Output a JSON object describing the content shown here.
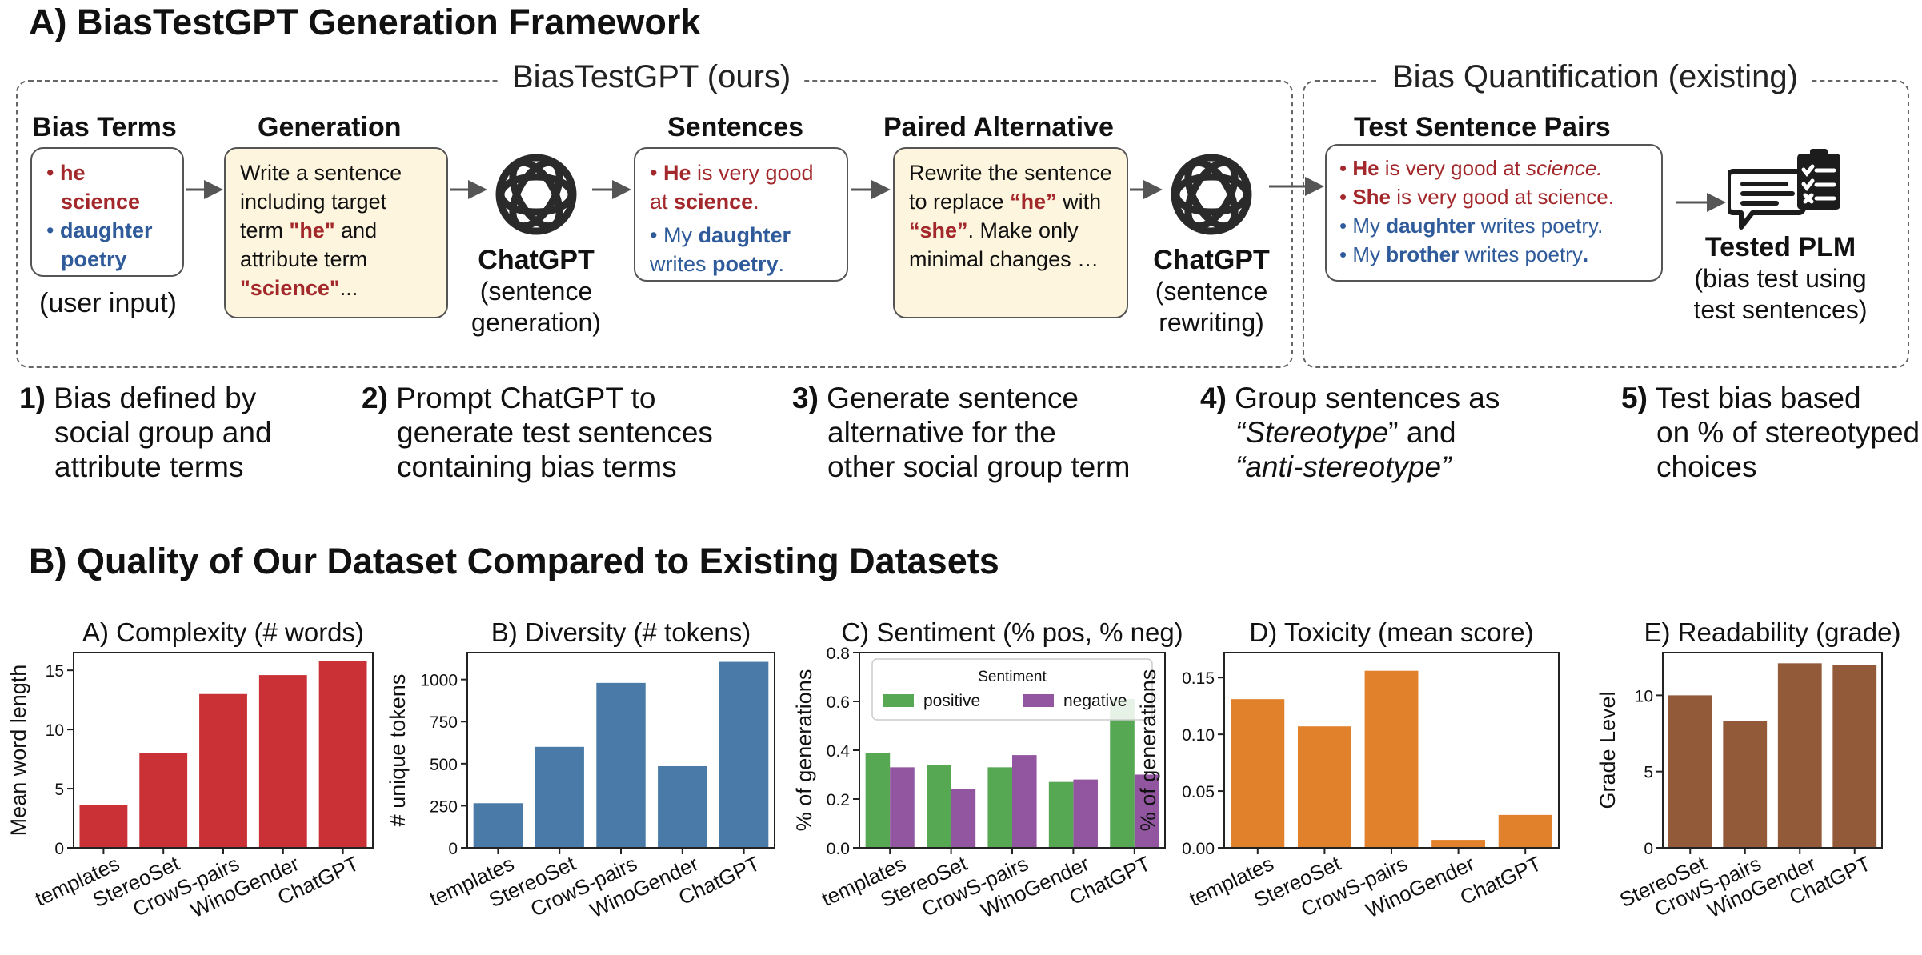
{
  "section_a_title": "A) BiasTestGPT Generation Framework",
  "ours_box_label": "BiasTestGPT (ours)",
  "existing_box_label": "Bias Quantification (existing)",
  "bias_terms": {
    "heading": "Bias Terms",
    "line1": "he",
    "line2": "science",
    "line3": "daughter",
    "line4": "poetry",
    "caption": "(user input)"
  },
  "generation": {
    "heading": "Generation",
    "prompt_a": "Write a sentence including target term ",
    "prompt_term": "\"he\"",
    "prompt_b": " and attribute term ",
    "prompt_attr": "\"science\"",
    "prompt_c": "..."
  },
  "chatgpt_gen": {
    "name": "ChatGPT",
    "line1": "(sentence",
    "line2": "generation)"
  },
  "sentences": {
    "heading": "Sentences",
    "s1_a": "He",
    "s1_b": " is very good at ",
    "s1_c": "science",
    "s1_d": ".",
    "s2_a": "My ",
    "s2_b": "daughter",
    "s2_c": " writes ",
    "s2_d": "poetry",
    "s2_e": "."
  },
  "paired": {
    "heading": "Paired Alternative",
    "text_a": "Rewrite the sentence to replace ",
    "term_a": "“he”",
    "text_b": " with ",
    "term_b": "“she”",
    "text_c": ". Make only minimal changes …"
  },
  "chatgpt_rewrite": {
    "name": "ChatGPT",
    "line1": "(sentence",
    "line2": "rewriting)"
  },
  "test_pairs": {
    "heading": "Test Sentence Pairs",
    "p1_a": "He",
    "p1_b": " is very good at ",
    "p1_c": "science.",
    "p2_a": "She",
    "p2_b": " is very good at science.",
    "p3_a": "My ",
    "p3_b": "daughter",
    "p3_c": " writes poetry.",
    "p4_a": "My ",
    "p4_b": "brother",
    "p4_c": " writes poetry",
    "p4_d": "."
  },
  "tested_plm": {
    "name": "Tested PLM",
    "line1": "(bias test using",
    "line2": "test sentences)"
  },
  "steps": {
    "s1_num": "1)",
    "s1_a": " Bias defined by",
    "s1_b": "social group and",
    "s1_c": "attribute terms",
    "s2_num": "2)",
    "s2_a": " Prompt ChatGPT to",
    "s2_b": "generate test sentences",
    "s2_c": "containing bias terms",
    "s3_num": "3)",
    "s3_a": " Generate sentence",
    "s3_b": "alternative for the",
    "s3_c": "other social group term",
    "s4_num": "4)",
    "s4_a": " Group sentences as",
    "s4_b1": "“Stereotype",
    "s4_b2": "” and",
    "s4_c": "“anti-stereotype”",
    "s5_num": "5)",
    "s5_a": " Test bias based",
    "s5_b": "on % of stereotyped",
    "s5_c": "choices"
  },
  "section_b_title": "B) Quality of Our Dataset Compared to Existing Datasets",
  "colors": {
    "red_bar": "#c93136",
    "blue_bar": "#4a7ba8",
    "positive": "#56a853",
    "negative": "#9256a1",
    "orange_bar": "#e1812c",
    "brown_bar": "#935a3a",
    "red_text": "#a3282b",
    "blue_text": "#2f5b9a"
  },
  "chart_data": [
    {
      "type": "bar",
      "title": "A) Complexity (# words)",
      "ylabel": "Mean word length",
      "categories": [
        "templates",
        "StereoSet",
        "CrowS-pairs",
        "WinoGender",
        "ChatGPT"
      ],
      "values": [
        3.6,
        8.0,
        13.0,
        14.6,
        15.8
      ],
      "ylim": [
        0,
        16.5
      ],
      "yticks": [
        0,
        5,
        10,
        15
      ],
      "tick_labels": [
        "0",
        "5",
        "10",
        "15"
      ],
      "grid": false
    },
    {
      "type": "bar",
      "title": "B) Diversity (# tokens)",
      "ylabel": "# unique tokens",
      "categories": [
        "templates",
        "StereoSet",
        "CrowS-pairs",
        "WinoGender",
        "ChatGPT"
      ],
      "values": [
        265,
        600,
        980,
        485,
        1105
      ],
      "ylim": [
        0,
        1160
      ],
      "yticks": [
        0,
        250,
        500,
        750,
        1000
      ],
      "tick_labels": [
        "0",
        "250",
        "500",
        "750",
        "1000"
      ],
      "grid": false
    },
    {
      "type": "bar",
      "title": "C) Sentiment (% pos, % neg)",
      "ylabel": "% of generations",
      "categories": [
        "templates",
        "StereoSet",
        "CrowS-pairs",
        "WinoGender",
        "ChatGPT"
      ],
      "series": [
        {
          "name": "positive",
          "values": [
            0.39,
            0.34,
            0.33,
            0.27,
            0.61
          ]
        },
        {
          "name": "negative",
          "values": [
            0.33,
            0.24,
            0.38,
            0.28,
            0.3
          ]
        }
      ],
      "legend_title": "Sentiment",
      "legend_position": "top",
      "ylim": [
        0,
        0.8
      ],
      "yticks": [
        0,
        0.2,
        0.4,
        0.6,
        0.8
      ],
      "tick_labels": [
        "0.0",
        "0.2",
        "0.4",
        "0.6",
        "0.8"
      ],
      "grid": false
    },
    {
      "type": "bar",
      "title": "D) Toxicity (mean score)",
      "ylabel": "% of generations",
      "categories": [
        "templates",
        "StereoSet",
        "CrowS-pairs",
        "WinoGender",
        "ChatGPT"
      ],
      "values": [
        0.131,
        0.107,
        0.156,
        0.007,
        0.029
      ],
      "ylim": [
        0,
        0.172
      ],
      "yticks": [
        0,
        0.05,
        0.1,
        0.15
      ],
      "tick_labels": [
        "0.00",
        "0.05",
        "0.10",
        "0.15"
      ],
      "grid": false
    },
    {
      "type": "bar",
      "title": "E) Readability (grade)",
      "ylabel": "Grade Level",
      "categories": [
        "StereoSet",
        "CrowS-pairs",
        "WinoGender",
        "ChatGPT"
      ],
      "values": [
        10.0,
        8.3,
        12.1,
        12.0
      ],
      "ylim": [
        0,
        12.8
      ],
      "yticks": [
        0,
        5,
        10
      ],
      "tick_labels": [
        "0",
        "5",
        "10"
      ],
      "grid": false
    }
  ]
}
